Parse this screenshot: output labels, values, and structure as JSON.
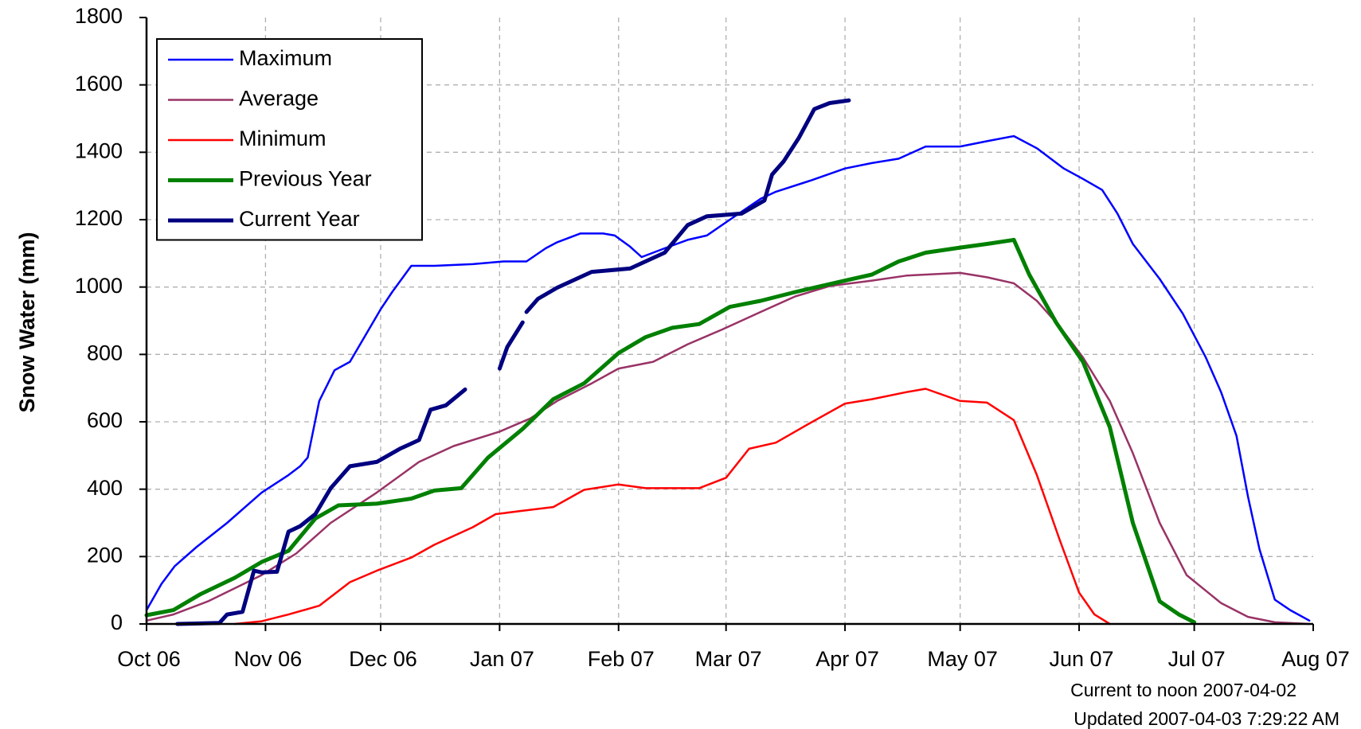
{
  "chart_data": {
    "type": "line",
    "y_label": "Snow Water (mm)",
    "annotations": [
      "Current to noon 2007-04-02",
      "Updated 2007-04-03 7:29:22 AM"
    ],
    "xlim": [
      0,
      304
    ],
    "xticks": [
      {
        "value": 0,
        "label": "Oct 06"
      },
      {
        "value": 31,
        "label": "Nov 06"
      },
      {
        "value": 61,
        "label": "Dec 06"
      },
      {
        "value": 92,
        "label": "Jan 07"
      },
      {
        "value": 123,
        "label": "Feb 07"
      },
      {
        "value": 151,
        "label": "Mar 07"
      },
      {
        "value": 182,
        "label": "Apr 07"
      },
      {
        "value": 212,
        "label": "May 07"
      },
      {
        "value": 243,
        "label": "Jun 07"
      },
      {
        "value": 273,
        "label": "Jul 07"
      },
      {
        "value": 304,
        "label": "Aug 07"
      }
    ],
    "ylim": [
      0,
      1800
    ],
    "yticks": [
      0,
      200,
      400,
      600,
      800,
      1000,
      1200,
      1400,
      1600,
      1800
    ],
    "grid": true,
    "legend": "top-left",
    "series": [
      {
        "name": "Maximum",
        "color": "#0000ff",
        "line_width": 2.5,
        "x": [
          0,
          3.9,
          7.3,
          13,
          21,
          30,
          37,
          40,
          42,
          45,
          49,
          53,
          57,
          61,
          64,
          69,
          75,
          85,
          93,
          99,
          104,
          107,
          113,
          119,
          122,
          126,
          129,
          135,
          141,
          146,
          152,
          156,
          160,
          164,
          173,
          182,
          189,
          196,
          203,
          212,
          219,
          226,
          232,
          239,
          244,
          249,
          253,
          257,
          264,
          270,
          276,
          280,
          284,
          287,
          290,
          294,
          298,
          303
        ],
        "values": [
          41,
          119,
          171,
          228,
          300,
          390,
          442,
          468,
          494,
          662,
          753,
          778,
          856,
          934,
          985,
          1063,
          1063,
          1068,
          1076,
          1076,
          1115,
          1133,
          1159,
          1159,
          1153,
          1120,
          1089,
          1115,
          1140,
          1153,
          1200,
          1231,
          1262,
          1283,
          1316,
          1352,
          1368,
          1381,
          1417,
          1417,
          1433,
          1448,
          1412,
          1352,
          1321,
          1288,
          1218,
          1128,
          1024,
          921,
          791,
          688,
          559,
          378,
          222,
          72,
          41,
          10
        ]
      },
      {
        "name": "Average",
        "color": "#993366",
        "line_width": 2.5,
        "x": [
          0,
          7,
          16,
          30,
          39,
          48,
          60,
          71,
          80,
          92,
          100,
          107,
          116,
          123,
          132,
          141,
          150,
          160,
          169,
          178,
          189,
          198,
          212,
          219,
          226,
          232,
          238,
          244,
          251,
          257,
          264,
          271,
          280,
          287,
          294,
          303
        ],
        "values": [
          10,
          28,
          67,
          145,
          209,
          300,
          390,
          481,
          528,
          571,
          610,
          662,
          714,
          758,
          778,
          830,
          874,
          926,
          972,
          1003,
          1019,
          1034,
          1042,
          1029,
          1011,
          959,
          882,
          791,
          662,
          507,
          300,
          145,
          62,
          21,
          5,
          0
        ]
      },
      {
        "name": "Minimum",
        "color": "#ff0000",
        "line_width": 2.5,
        "x": [
          23,
          30,
          37,
          45,
          53,
          60,
          69,
          75,
          85,
          91,
          98,
          106,
          114,
          123,
          130,
          144,
          151,
          157,
          164,
          173,
          182,
          189,
          198,
          203,
          212,
          219,
          226,
          232,
          238,
          243,
          247,
          251
        ],
        "values": [
          0,
          8,
          28,
          54,
          124,
          158,
          197,
          235,
          287,
          326,
          336,
          347,
          398,
          414,
          403,
          403,
          434,
          520,
          538,
          597,
          654,
          667,
          688,
          698,
          662,
          657,
          605,
          442,
          248,
          93,
          28,
          0
        ]
      },
      {
        "name": "Previous Year",
        "color": "#008000",
        "line_width": 5,
        "x": [
          0,
          7,
          14,
          23,
          30,
          37,
          44,
          50,
          60,
          69,
          75,
          82,
          89,
          98,
          106,
          114,
          123,
          130,
          137,
          144,
          152,
          160,
          169,
          182,
          189,
          196,
          203,
          212,
          219,
          226,
          230,
          237,
          244,
          251,
          257,
          264,
          269,
          273
        ],
        "values": [
          26,
          41,
          88,
          137,
          184,
          217,
          313,
          352,
          357,
          372,
          396,
          403,
          494,
          579,
          667,
          714,
          804,
          851,
          879,
          890,
          941,
          959,
          985,
          1019,
          1037,
          1076,
          1102,
          1117,
          1128,
          1140,
          1037,
          895,
          778,
          584,
          300,
          67,
          28,
          5
        ]
      },
      {
        "name": "Current Year",
        "color": "#000080",
        "line_width": 5,
        "x": [
          8,
          19,
          21,
          25,
          28,
          30,
          34,
          37,
          40,
          44,
          48,
          53,
          60,
          66,
          71,
          74,
          78,
          83,
          null,
          92,
          94,
          98,
          null,
          99,
          102,
          107,
          116,
          126,
          135,
          141,
          146,
          155,
          161,
          163,
          166,
          170,
          174,
          178,
          183
        ],
        "values": [
          0,
          3,
          28,
          36,
          158,
          153,
          155,
          274,
          290,
          326,
          403,
          468,
          481,
          520,
          546,
          636,
          649,
          696,
          null,
          758,
          822,
          895,
          null,
          926,
          965,
          998,
          1045,
          1055,
          1102,
          1184,
          1210,
          1218,
          1257,
          1334,
          1373,
          1443,
          1528,
          1546,
          1554
        ]
      }
    ]
  }
}
